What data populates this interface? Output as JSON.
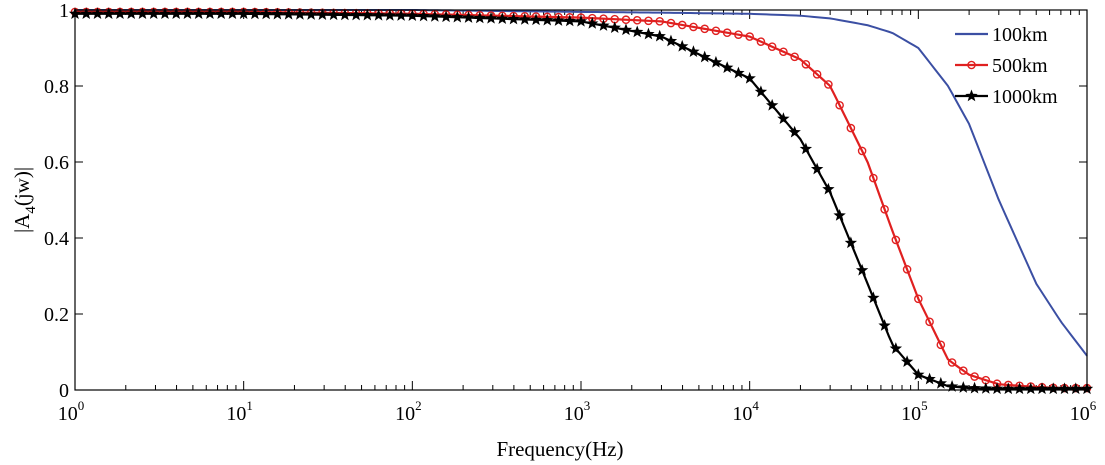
{
  "chart_data": {
    "type": "line",
    "xscale": "log",
    "xlabel": "Frequency(Hz)",
    "ylabel_main": "|A",
    "ylabel_sub": "4",
    "ylabel_rest": "(jw)|",
    "xlim": [
      1,
      1000000
    ],
    "ylim": [
      0,
      1
    ],
    "x_ticks": [
      {
        "base": "10",
        "exp": "0",
        "value": 1
      },
      {
        "base": "10",
        "exp": "1",
        "value": 10
      },
      {
        "base": "10",
        "exp": "2",
        "value": 100
      },
      {
        "base": "10",
        "exp": "3",
        "value": 1000
      },
      {
        "base": "10",
        "exp": "4",
        "value": 10000
      },
      {
        "base": "10",
        "exp": "5",
        "value": 100000
      },
      {
        "base": "10",
        "exp": "6",
        "value": 1000000
      }
    ],
    "y_ticks": [
      {
        "label": "0",
        "value": 0
      },
      {
        "label": "0.2",
        "value": 0.2
      },
      {
        "label": "0.4",
        "value": 0.4
      },
      {
        "label": "0.6",
        "value": 0.6
      },
      {
        "label": "0.8",
        "value": 0.8
      },
      {
        "label": "1",
        "value": 1
      }
    ],
    "legend_position": "top-right",
    "series": [
      {
        "name": "100km",
        "color": "#3b4fa3",
        "marker": "none",
        "x": [
          1,
          10,
          100,
          1000,
          3000,
          10000,
          20000,
          30000,
          50000,
          70000,
          100000,
          150000,
          200000,
          300000,
          500000,
          700000,
          1000000
        ],
        "y": [
          1.0,
          1.0,
          1.0,
          0.995,
          0.993,
          0.99,
          0.985,
          0.978,
          0.96,
          0.94,
          0.9,
          0.8,
          0.7,
          0.5,
          0.28,
          0.18,
          0.09
        ]
      },
      {
        "name": "500km",
        "color": "#e02020",
        "marker": "circle",
        "x": [
          1,
          10,
          100,
          1000,
          3000,
          10000,
          20000,
          30000,
          50000,
          70000,
          100000,
          150000,
          200000,
          300000,
          500000,
          700000,
          1000000
        ],
        "y": [
          0.995,
          0.995,
          0.99,
          0.98,
          0.97,
          0.93,
          0.87,
          0.8,
          0.6,
          0.42,
          0.24,
          0.08,
          0.04,
          0.015,
          0.008,
          0.005,
          0.005
        ]
      },
      {
        "name": "1000km",
        "color": "#000000",
        "marker": "star",
        "x": [
          1,
          10,
          100,
          1000,
          3000,
          10000,
          20000,
          30000,
          50000,
          70000,
          100000,
          150000,
          200000,
          300000,
          500000,
          700000,
          1000000
        ],
        "y": [
          0.99,
          0.99,
          0.985,
          0.97,
          0.93,
          0.82,
          0.66,
          0.52,
          0.28,
          0.12,
          0.04,
          0.01,
          0.005,
          0.003,
          0.003,
          0.003,
          0.003
        ]
      }
    ]
  }
}
